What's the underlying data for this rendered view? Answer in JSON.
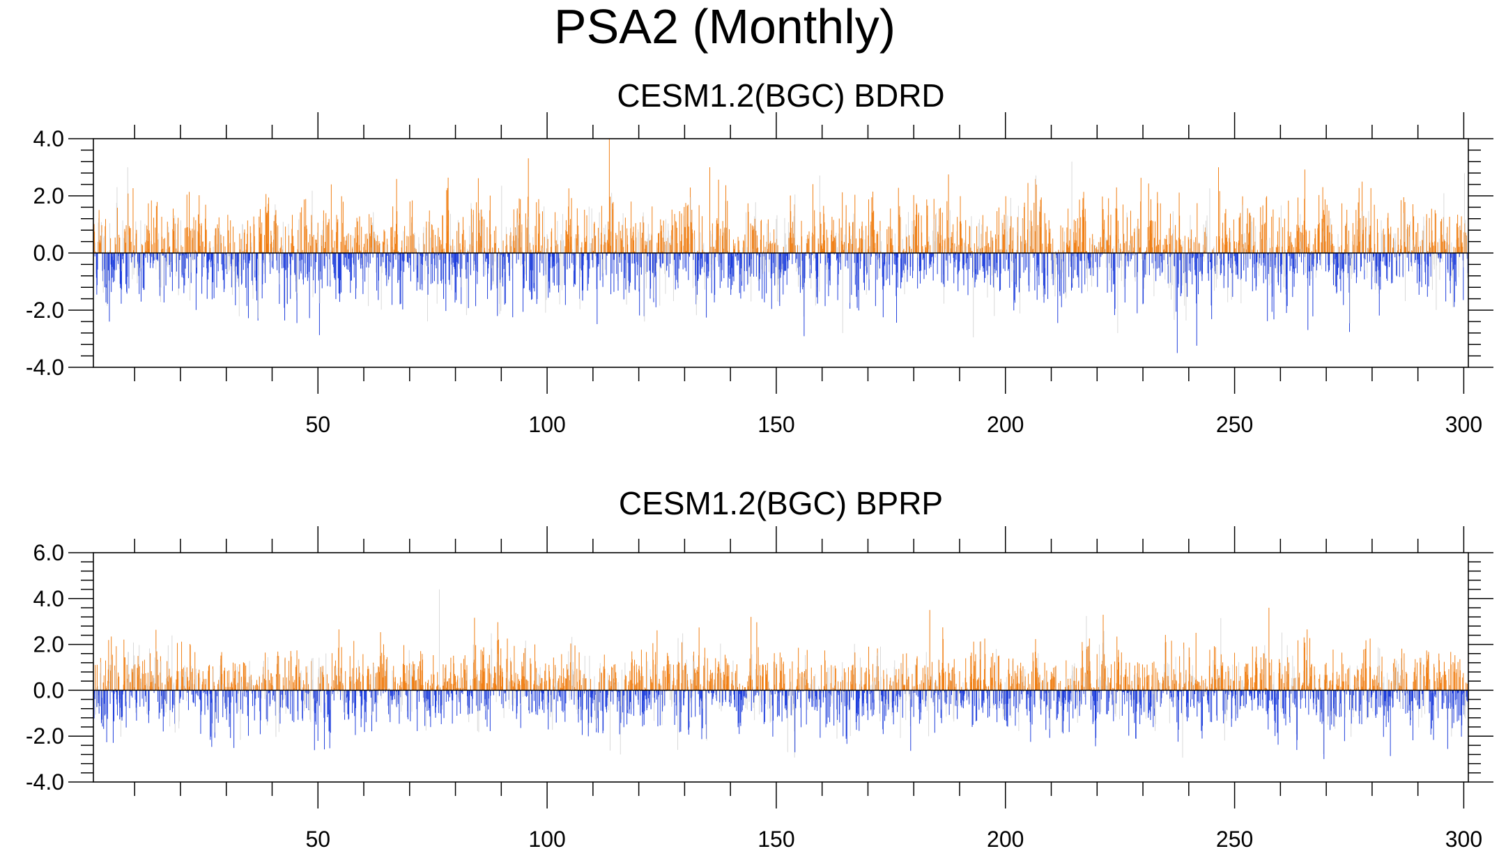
{
  "title": "PSA2 (Monthly)",
  "colors": {
    "positive": "#f07f14",
    "negative": "#1f3fdc",
    "faint_bars": "#d8d8d8",
    "axis": "#000000"
  },
  "chart_data": [
    {
      "type": "bar",
      "title": "CESM1.2(BGC) BDRD",
      "xlabel": "",
      "ylabel": "",
      "xlim": [
        1,
        301
      ],
      "ylim": [
        -4.0,
        4.0
      ],
      "xticks": [
        50,
        100,
        150,
        200,
        250,
        300
      ],
      "xtick_labels": [
        "50",
        "100",
        "150",
        "200",
        "250",
        "300"
      ],
      "yticks": [
        -4.0,
        -2.0,
        0.0,
        2.0,
        4.0
      ],
      "ytick_labels": [
        "-4.0",
        "-2.0",
        "0.0",
        "2.0",
        "4.0"
      ],
      "grid": false,
      "description_values": "monthly PSA2 index, 12 bars per year, years 1-301",
      "peaks": [
        {
          "year": 8,
          "value": 3.0
        },
        {
          "year": 135,
          "value": 3.0
        },
        {
          "year": 214,
          "value": 3.2
        },
        {
          "year": 246,
          "value": 3.0
        },
        {
          "year": 237,
          "value": -3.5
        },
        {
          "year": 224,
          "value": -2.8
        },
        {
          "year": 164,
          "value": -2.8
        },
        {
          "year": 4,
          "value": -2.4
        }
      ],
      "seed": 11
    },
    {
      "type": "bar",
      "title": "CESM1.2(BGC) BPRP",
      "xlabel": "",
      "ylabel": "",
      "xlim": [
        1,
        301
      ],
      "ylim": [
        -4.0,
        6.0
      ],
      "xticks": [
        50,
        100,
        150,
        200,
        250,
        300
      ],
      "xtick_labels": [
        "50",
        "100",
        "150",
        "200",
        "250",
        "300"
      ],
      "yticks": [
        -4.0,
        -2.0,
        0.0,
        2.0,
        4.0,
        6.0
      ],
      "ytick_labels": [
        "-4.0",
        "-2.0",
        "0.0",
        "2.0",
        "4.0",
        "6.0"
      ],
      "grid": false,
      "description_values": "monthly PSA2 index, 12 bars per year, years 1-301",
      "peaks": [
        {
          "year": 76,
          "value": 4.4
        },
        {
          "year": 183,
          "value": 3.5
        },
        {
          "year": 257,
          "value": 3.6
        },
        {
          "year": 144,
          "value": 3.2
        },
        {
          "year": 128,
          "value": -2.6
        },
        {
          "year": 152,
          "value": -2.7
        },
        {
          "year": 269,
          "value": -3.0
        }
      ],
      "seed": 23
    }
  ]
}
